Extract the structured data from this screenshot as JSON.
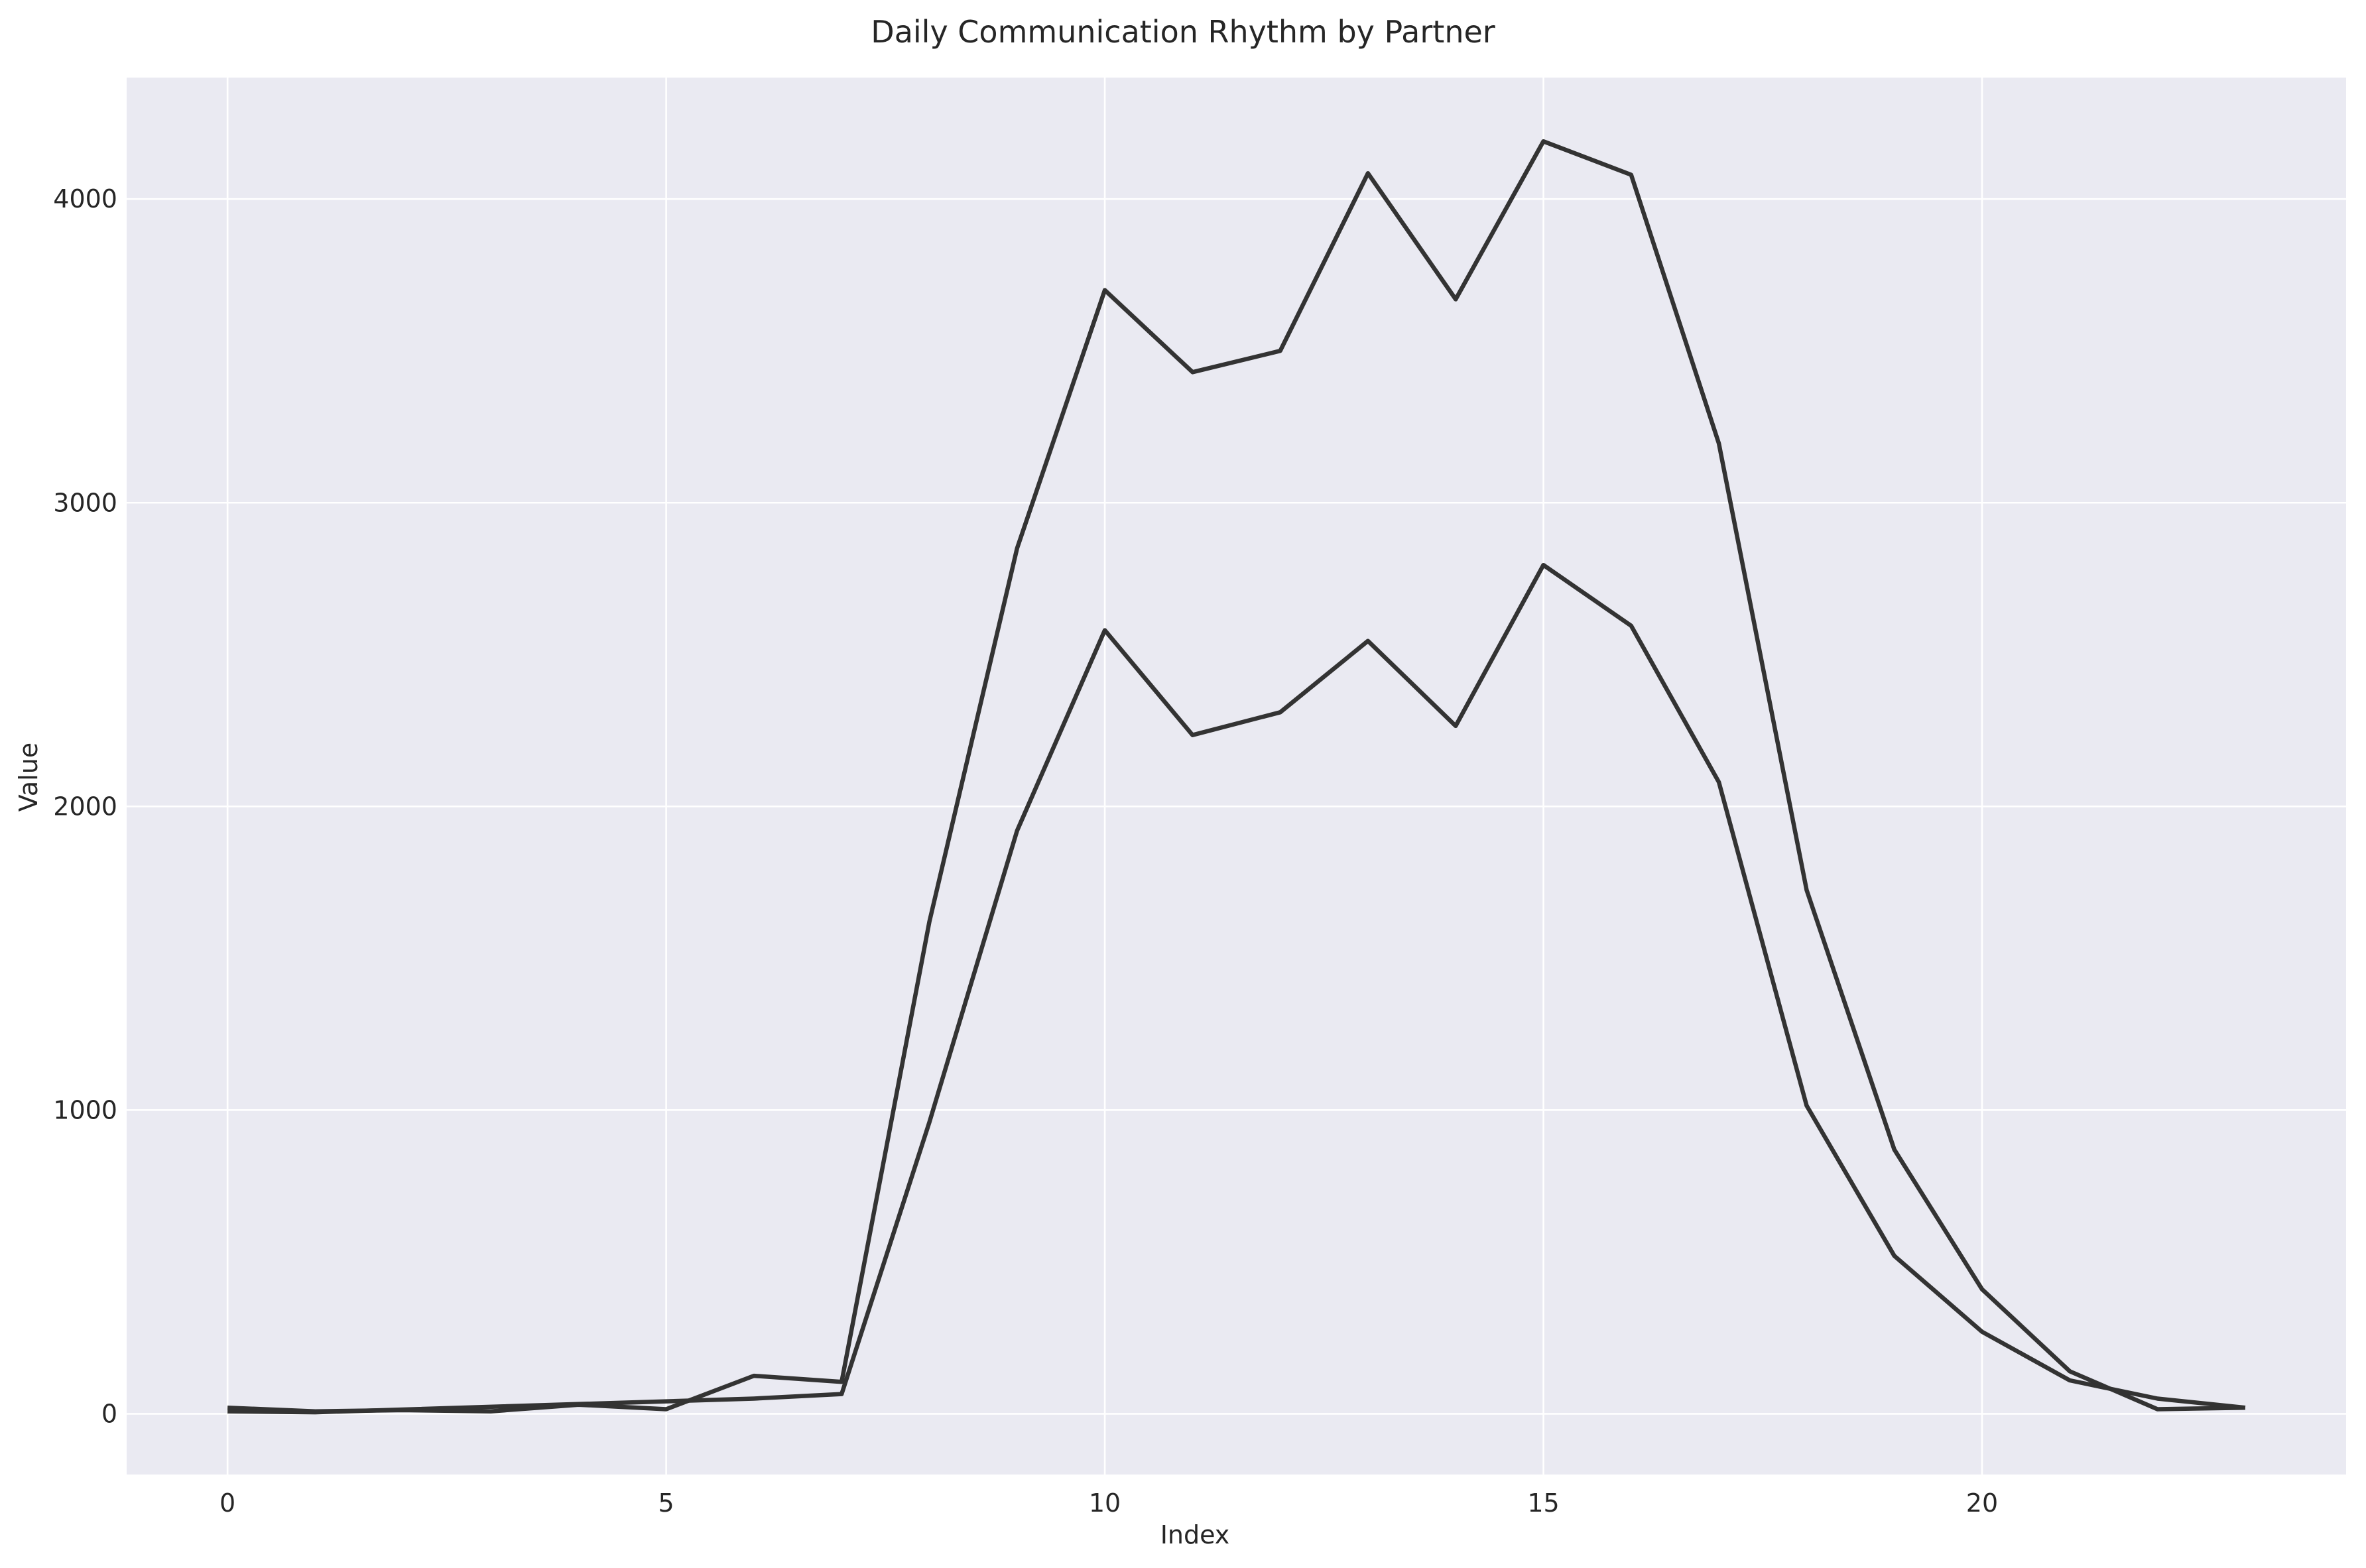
{
  "chart_data": {
    "type": "line",
    "title": "Daily Communication Rhythm by Partner",
    "xlabel": "Index",
    "ylabel": "Value",
    "xlim": [
      -1.15,
      24.15
    ],
    "ylim": [
      -200,
      4400
    ],
    "xticks": [
      0,
      5,
      10,
      15,
      20
    ],
    "yticks": [
      0,
      1000,
      2000,
      3000,
      4000
    ],
    "grid": true,
    "legend": "none",
    "colors": {
      "background": "#eaeaf2",
      "grid": "#ffffff",
      "line": "#333333",
      "text": "#262626"
    },
    "series": [
      {
        "x": [
          0,
          1,
          2,
          3,
          4,
          5,
          6,
          7,
          8,
          9,
          10,
          11,
          12,
          13,
          14,
          15,
          16,
          17,
          18,
          19,
          20,
          21,
          22,
          23
        ],
        "values": [
          20,
          8,
          12,
          8,
          30,
          15,
          125,
          105,
          1620,
          2850,
          3700,
          3430,
          3500,
          4085,
          3670,
          4190,
          4080,
          3195,
          1725,
          870,
          410,
          140,
          15,
          20
        ]
      },
      {
        "x": [
          0,
          1,
          6,
          7,
          8,
          9,
          10,
          11,
          12,
          13,
          14,
          15,
          16,
          17,
          18,
          19,
          20,
          21,
          22,
          23
        ],
        "values": [
          8,
          5,
          50,
          65,
          960,
          1920,
          2580,
          2235,
          2310,
          2545,
          2265,
          2795,
          2595,
          2080,
          1015,
          520,
          270,
          110,
          50,
          20
        ]
      }
    ]
  }
}
